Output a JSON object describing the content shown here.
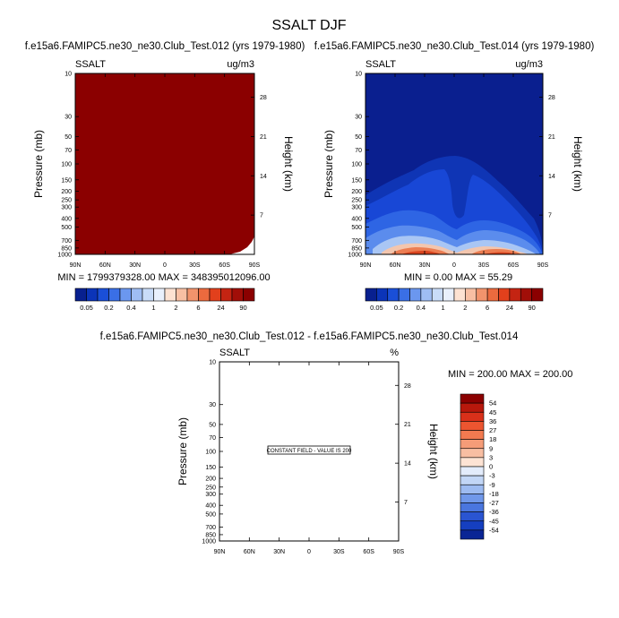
{
  "title": "SSALT DJF",
  "chart_data": [
    {
      "type": "heatmap",
      "title": "f.e15a6.FAMIPC5.ne30_ne30.Club_Test.012 (yrs 1979-1980)",
      "left_label": "SSALT",
      "right_label": "ug/m3",
      "ylabel": "Pressure (mb)",
      "ylabel_right": "Height (km)",
      "x_ticks": [
        "90N",
        "60N",
        "30N",
        "0",
        "30S",
        "60S",
        "90S"
      ],
      "y_ticks": [
        "10",
        "30",
        "50",
        "70",
        "100",
        "150",
        "200",
        "250",
        "300",
        "400",
        "500",
        "700",
        "850",
        "1000"
      ],
      "y_ticks_right": [
        "28",
        "21",
        "14",
        "7"
      ],
      "stats": "MIN = 1799379328.00   MAX = 348395012096.00",
      "min": 1799379328.0,
      "max": 348395012096.0,
      "fill_color": "#8b0000"
    },
    {
      "type": "heatmap",
      "title": "f.e15a6.FAMIPC5.ne30_ne30.Club_Test.014 (yrs 1979-1980)",
      "left_label": "SSALT",
      "right_label": "ug/m3",
      "ylabel": "Pressure (mb)",
      "ylabel_right": "Height (km)",
      "x_ticks": [
        "90N",
        "60N",
        "30N",
        "0",
        "30S",
        "60S",
        "90S"
      ],
      "y_ticks": [
        "10",
        "30",
        "50",
        "70",
        "100",
        "150",
        "200",
        "250",
        "300",
        "400",
        "500",
        "700",
        "850",
        "1000"
      ],
      "y_ticks_right": [
        "28",
        "21",
        "14",
        "7"
      ],
      "stats": "MIN =    0.00   MAX =   55.29",
      "min": 0.0,
      "max": 55.29
    },
    {
      "type": "heatmap",
      "title": "f.e15a6.FAMIPC5.ne30_ne30.Club_Test.012 - f.e15a6.FAMIPC5.ne30_ne30.Club_Test.014",
      "left_label": "SSALT",
      "right_label": "%",
      "ylabel": "Pressure (mb)",
      "ylabel_right": "Height (km)",
      "x_ticks": [
        "90N",
        "60N",
        "30N",
        "0",
        "30S",
        "60S",
        "90S"
      ],
      "y_ticks": [
        "10",
        "30",
        "50",
        "70",
        "100",
        "150",
        "200",
        "250",
        "300",
        "400",
        "500",
        "700",
        "850",
        "1000"
      ],
      "y_ticks_right": [
        "28",
        "21",
        "14",
        "7"
      ],
      "stats": "MIN = 200.00   MAX = 200.00",
      "min": 200.0,
      "max": 200.0,
      "annotation": "CONSTANT FIELD - VALUE IS 200"
    }
  ],
  "colorbar_top": {
    "labels": [
      "0.05",
      "0.2",
      "0.4",
      "1",
      "2",
      "6",
      "24",
      "90"
    ],
    "colors": [
      "#08208f",
      "#0b34b8",
      "#1a4fd8",
      "#3a6fe6",
      "#6b97ef",
      "#9fbdf3",
      "#c9dcf8",
      "#e9f0fc",
      "#fde2d2",
      "#f8bfa3",
      "#f2936c",
      "#ec6a3e",
      "#e2401c",
      "#c42412",
      "#a10e08",
      "#8b0000"
    ]
  },
  "colorbar_diff": {
    "labels": [
      "54",
      "45",
      "36",
      "27",
      "18",
      "9",
      "3",
      "0",
      "-3",
      "-9",
      "-18",
      "-27",
      "-36",
      "-45",
      "-54"
    ],
    "colors": [
      "#8b0000",
      "#b8180c",
      "#d9301a",
      "#ec5530",
      "#f27a50",
      "#f59c78",
      "#f8bea2",
      "#fde3d4",
      "#e3ecfb",
      "#c2d6f6",
      "#9dbbf1",
      "#7098ea",
      "#4a76df",
      "#2a55d2",
      "#153fc0",
      "#0a2595"
    ]
  }
}
